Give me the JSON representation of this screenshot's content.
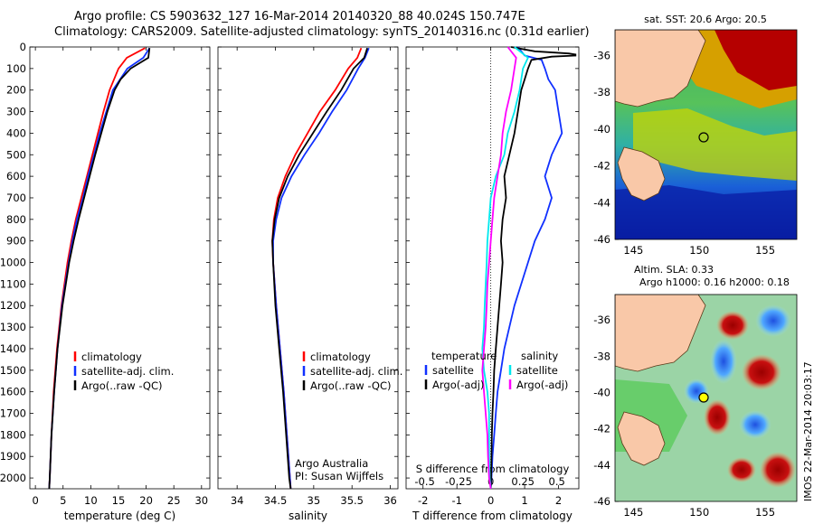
{
  "header": {
    "title_line1": "Argo profile: CS 5903632_127 16-Mar-2014 20140320_88 40.024S 150.747E",
    "title_line2": "Climatology: CARS2009. Satellite-adjusted climatology: synTS_20140316.nc (0.31d earlier)"
  },
  "stamp": "IMOS 22-Mar-2014 20:03:17",
  "colors": {
    "climatology": "#ff0000",
    "satellite": "#1030ff",
    "argo": "#000000",
    "salinity_satellite": "#00e8ee",
    "salinity_argo": "#ff00ff"
  },
  "depth_axis": {
    "ylim": [
      0,
      2050
    ],
    "ticks": [
      0,
      100,
      200,
      300,
      400,
      500,
      600,
      700,
      800,
      900,
      1000,
      1100,
      1200,
      1300,
      1400,
      1500,
      1600,
      1700,
      1800,
      1900,
      2000
    ]
  },
  "annotations": {
    "argo_australia": "Argo Australia",
    "pi": "PI: Susan Wijffels",
    "s_difference_label": "S difference from climatology"
  },
  "chart_data": [
    {
      "id": "temperature",
      "type": "line",
      "xlabel": "temperature (deg C)",
      "xlim": [
        -1,
        31.5
      ],
      "xticks": [
        0,
        5,
        10,
        15,
        20,
        25,
        30
      ],
      "legend": {
        "placement": "lower-center",
        "entries": [
          "climatology",
          "satellite-adj. clim.",
          "Argo(..raw -QC)"
        ]
      },
      "series": [
        {
          "name": "climatology",
          "color": "#ff0000",
          "depth": [
            5,
            50,
            100,
            200,
            300,
            400,
            500,
            600,
            700,
            800,
            900,
            1000,
            1200,
            1400,
            1600,
            1800,
            2000,
            2050
          ],
          "values": [
            19.8,
            16.5,
            15.0,
            13.4,
            12.3,
            11.3,
            10.3,
            9.3,
            8.3,
            7.3,
            6.5,
            5.8,
            4.7,
            3.9,
            3.3,
            2.9,
            2.6,
            2.5
          ]
        },
        {
          "name": "satellite-adj. clim.",
          "color": "#1030ff",
          "depth": [
            5,
            50,
            100,
            200,
            300,
            400,
            500,
            600,
            700,
            800,
            900,
            1000,
            1200,
            1400,
            1600,
            1800,
            2000,
            2050
          ],
          "values": [
            20.6,
            19.5,
            16.6,
            14.0,
            12.8,
            11.6,
            10.6,
            9.5,
            8.6,
            7.5,
            6.7,
            6.0,
            4.8,
            4.0,
            3.4,
            2.9,
            2.6,
            2.5
          ]
        },
        {
          "name": "Argo(..raw -QC)",
          "color": "#000000",
          "depth": [
            5,
            50,
            100,
            150,
            200,
            300,
            400,
            500,
            600,
            700,
            800,
            900,
            1000,
            1200,
            1400,
            1600,
            1800,
            2000,
            2050
          ],
          "values": [
            20.6,
            20.4,
            17.2,
            15.4,
            14.3,
            13.0,
            11.9,
            10.8,
            9.8,
            8.8,
            7.8,
            6.9,
            6.1,
            4.9,
            4.0,
            3.4,
            2.9,
            2.6,
            2.5
          ]
        }
      ]
    },
    {
      "id": "salinity",
      "type": "line",
      "xlabel": "salinity",
      "xlim": [
        33.75,
        36.1
      ],
      "xticks": [
        34,
        34.5,
        35,
        35.5,
        36
      ],
      "legend": {
        "placement": "lower-center",
        "entries": [
          "climatology",
          "satellite-adj. clim.",
          "Argo(..raw -QC)"
        ]
      },
      "series": [
        {
          "name": "climatology",
          "color": "#ff0000",
          "depth": [
            5,
            50,
            100,
            200,
            300,
            400,
            500,
            600,
            700,
            800,
            900,
            1000,
            1200,
            1400,
            1600,
            1800,
            2000,
            2050
          ],
          "values": [
            35.62,
            35.57,
            35.45,
            35.28,
            35.08,
            34.92,
            34.76,
            34.63,
            34.53,
            34.48,
            34.46,
            34.47,
            34.51,
            34.56,
            34.61,
            34.65,
            34.69,
            34.7
          ]
        },
        {
          "name": "satellite-adj. clim.",
          "color": "#1030ff",
          "depth": [
            5,
            50,
            100,
            200,
            300,
            400,
            500,
            600,
            700,
            800,
            900,
            1000,
            1200,
            1400,
            1600,
            1800,
            2000,
            2050
          ],
          "values": [
            35.72,
            35.67,
            35.58,
            35.43,
            35.24,
            35.07,
            34.88,
            34.71,
            34.58,
            34.51,
            34.47,
            34.47,
            34.51,
            34.56,
            34.61,
            34.65,
            34.69,
            34.7
          ]
        },
        {
          "name": "Argo(..raw -QC)",
          "color": "#000000",
          "depth": [
            5,
            50,
            100,
            200,
            300,
            400,
            500,
            600,
            700,
            800,
            900,
            1000,
            1200,
            1400,
            1600,
            1800,
            2000,
            2050
          ],
          "values": [
            35.7,
            35.66,
            35.52,
            35.36,
            35.17,
            34.99,
            34.81,
            34.66,
            34.55,
            34.49,
            34.46,
            34.47,
            34.5,
            34.55,
            34.6,
            34.64,
            34.68,
            34.7
          ]
        }
      ]
    },
    {
      "id": "differences",
      "type": "line",
      "xlabel": "T difference from climatology",
      "xlim": [
        -2.5,
        2.6
      ],
      "xticks": [
        -2,
        -1,
        0,
        1,
        2
      ],
      "s_xticks": [
        {
          "label": "-0.5",
          "t_pos": -1.95
        },
        {
          "label": "-0.25",
          "t_pos": -0.95
        },
        {
          "label": "0",
          "t_pos": 0
        },
        {
          "label": "0.25",
          "t_pos": 0.95
        },
        {
          "label": "0.5",
          "t_pos": 1.95
        }
      ],
      "legend": {
        "placement": "lower-center",
        "temperature_heading": "temperature",
        "salinity_heading": "salinity",
        "entries": [
          "satellite",
          "Argo(-adj)",
          "satellite",
          "Argo(-adj)"
        ]
      },
      "series": [
        {
          "name": "satellite",
          "group": "temperature",
          "color": "#1030ff",
          "depth": [
            0,
            40,
            60,
            100,
            150,
            200,
            300,
            400,
            500,
            600,
            700,
            800,
            900,
            1000,
            1100,
            1200,
            1300,
            1400,
            1500,
            1600,
            1700,
            1800,
            1900,
            2000,
            2050
          ],
          "values": [
            0.8,
            1.0,
            1.5,
            1.6,
            1.7,
            1.9,
            2.0,
            2.1,
            1.8,
            1.6,
            1.8,
            1.6,
            1.3,
            1.1,
            0.9,
            0.7,
            0.55,
            0.4,
            0.3,
            0.2,
            0.15,
            0.1,
            0.05,
            0.02,
            0.0
          ]
        },
        {
          "name": "Argo(-adj)",
          "group": "temperature",
          "color": "#000000",
          "depth": [
            0,
            20,
            30,
            35,
            40,
            45,
            60,
            100,
            150,
            200,
            300,
            400,
            500,
            600,
            700,
            800,
            900,
            1000,
            1100,
            1200,
            1300,
            1400,
            1500,
            1600,
            1700,
            1800,
            1900,
            2000,
            2050
          ],
          "values": [
            0.6,
            1.3,
            2.3,
            2.5,
            2.5,
            1.8,
            1.2,
            1.1,
            1.0,
            0.9,
            0.8,
            0.7,
            0.55,
            0.4,
            0.45,
            0.35,
            0.3,
            0.35,
            0.3,
            0.25,
            0.2,
            0.15,
            0.1,
            0.08,
            0.05,
            0.03,
            0.02,
            0.01,
            0.0
          ]
        },
        {
          "name": "satellite",
          "group": "salinity",
          "color": "#00e8ee",
          "depth": [
            0,
            50,
            100,
            200,
            300,
            400,
            500,
            600,
            700,
            800,
            900,
            1000,
            1100,
            1200,
            1300,
            1400,
            1500,
            1600,
            1700,
            1800,
            1900,
            2000,
            2050
          ],
          "values": [
            0.7,
            1.1,
            0.95,
            0.85,
            0.7,
            0.5,
            0.4,
            0.15,
            0.0,
            -0.05,
            -0.1,
            -0.12,
            -0.15,
            -0.18,
            -0.2,
            -0.25,
            -0.2,
            -0.1,
            -0.05,
            -0.05,
            -0.05,
            -0.03,
            0.0
          ]
        },
        {
          "name": "Argo(-adj)",
          "group": "salinity",
          "color": "#ff00ff",
          "depth": [
            0,
            50,
            100,
            200,
            300,
            400,
            500,
            600,
            700,
            800,
            900,
            1000,
            1100,
            1200,
            1300,
            1400,
            1500,
            1600,
            1700,
            1800,
            1900,
            2000,
            2050
          ],
          "values": [
            0.5,
            0.75,
            0.7,
            0.6,
            0.45,
            0.35,
            0.3,
            0.2,
            0.1,
            0.05,
            0.0,
            -0.05,
            -0.1,
            -0.12,
            -0.15,
            -0.2,
            -0.25,
            -0.2,
            -0.15,
            -0.1,
            -0.08,
            -0.05,
            0.0
          ]
        }
      ]
    },
    {
      "id": "map_sst",
      "type": "heatmap",
      "title": "sat. SST: 20.6 Argo: 20.5",
      "xticks": [
        145,
        150,
        155
      ],
      "yticks": [
        -36,
        -38,
        -40,
        -42,
        -44,
        -46
      ],
      "xlim": [
        143.6,
        157.4
      ],
      "ylim": [
        -46,
        -34.6
      ],
      "argo_position": {
        "lon": 150.747,
        "lat": -40.024
      }
    },
    {
      "id": "map_sla",
      "type": "heatmap",
      "title_line1": "Altim. SLA: 0.33",
      "title_line2": "Argo h1000: 0.16 h2000: 0.18",
      "xticks": [
        145,
        150,
        155
      ],
      "yticks": [
        -36,
        -38,
        -40,
        -42,
        -44,
        -46
      ],
      "xlim": [
        143.6,
        157.4
      ],
      "ylim": [
        -46,
        -34.6
      ],
      "argo_position": {
        "lon": 150.747,
        "lat": -40.024
      }
    }
  ]
}
